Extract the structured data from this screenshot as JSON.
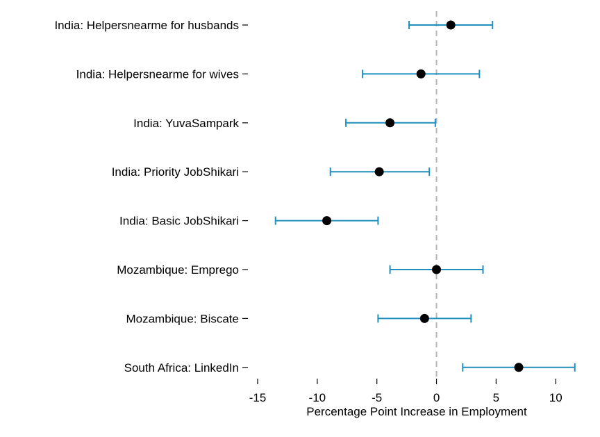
{
  "chart_data": {
    "type": "scatter",
    "subtype": "coefficient-plot-with-confidence-intervals",
    "xlabel": "Percentage Point Increase in Employment",
    "xlim": [
      -15,
      11.6
    ],
    "xticks": [
      -15,
      -10,
      -5,
      0,
      5,
      10
    ],
    "xtick_labels": [
      "-15",
      "-10",
      "-5",
      "0",
      "5",
      "10"
    ],
    "reference_line": 0,
    "grid": false,
    "colors": {
      "ci": "#1f8fc0",
      "point": "#000000",
      "reference": "#b4b4b4"
    },
    "categories": [
      "India: Helpersnearme for husbands",
      "India: Helpersnearme for wives",
      "India: YuvaSampark",
      "India: Priority JobShikari",
      "India: Basic JobShikari",
      "Mozambique: Emprego",
      "Mozambique: Biscate",
      "South Africa: LinkedIn"
    ],
    "estimates": [
      1.2,
      -1.3,
      -3.9,
      -4.8,
      -9.2,
      0.0,
      -1.0,
      6.9
    ],
    "ci_low": [
      -2.3,
      -6.2,
      -7.6,
      -8.9,
      -13.5,
      -3.9,
      -4.9,
      2.2
    ],
    "ci_high": [
      4.7,
      3.6,
      -0.1,
      -0.6,
      -4.9,
      3.9,
      2.9,
      11.6
    ]
  }
}
